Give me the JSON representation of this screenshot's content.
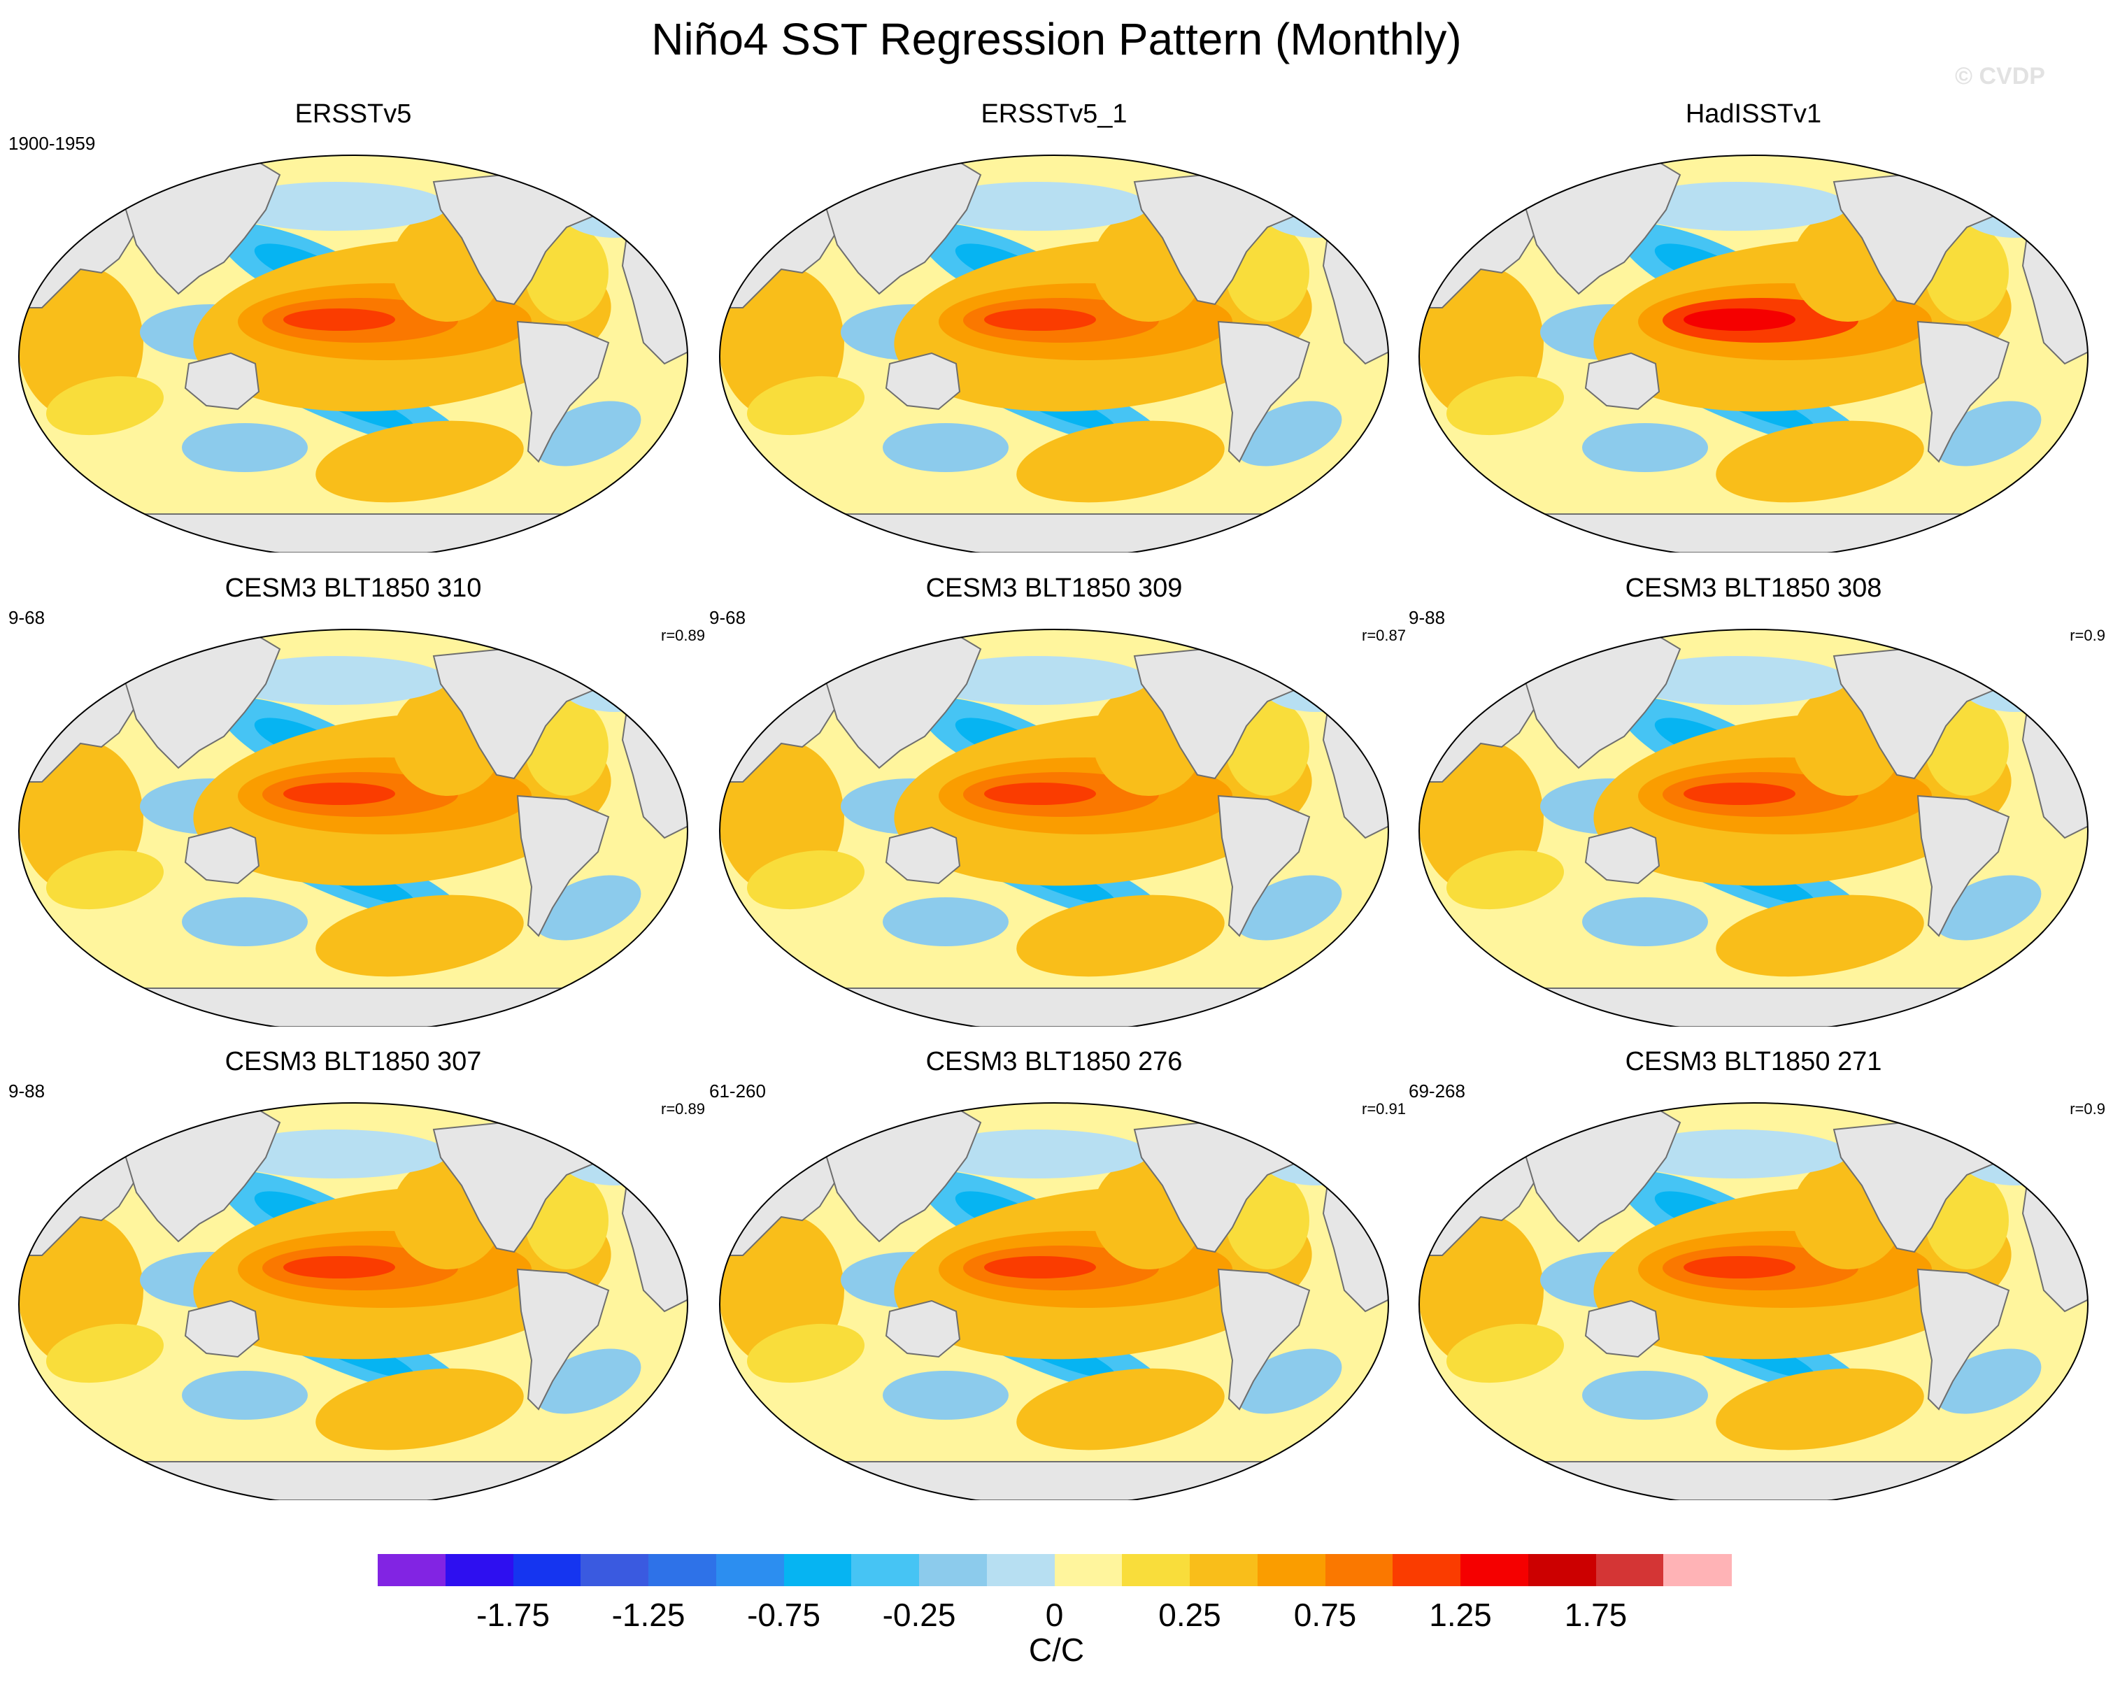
{
  "title": "Niño4 SST Regression Pattern (Monthly)",
  "watermark": "© CVDP",
  "panels": [
    {
      "title": "ERSSTv5",
      "period": "1900-1959",
      "r": "",
      "nino": 1.45,
      "nwpac": -0.9,
      "sh": 0.55
    },
    {
      "title": "ERSSTv5_1",
      "period": "",
      "r": "",
      "nino": 1.35,
      "nwpac": -0.85,
      "sh": 0.6
    },
    {
      "title": "HadISSTv1",
      "period": "",
      "r": "",
      "nino": 1.65,
      "nwpac": -1.0,
      "sh": 0.5
    },
    {
      "title": "CESM3 BLT1850 310",
      "period": "9-68",
      "r": "r=0.89",
      "nino": 1.35,
      "nwpac": -1.0,
      "sh": 0.55
    },
    {
      "title": "CESM3 BLT1850 309",
      "period": "9-68",
      "r": "r=0.87",
      "nino": 1.3,
      "nwpac": -0.9,
      "sh": 0.5
    },
    {
      "title": "CESM3 BLT1850 308",
      "period": "9-88",
      "r": "r=0.9",
      "nino": 1.3,
      "nwpac": -1.0,
      "sh": 0.55
    },
    {
      "title": "CESM3 BLT1850 307",
      "period": "9-88",
      "r": "r=0.89",
      "nino": 1.35,
      "nwpac": -1.0,
      "sh": 0.55
    },
    {
      "title": "CESM3 BLT1850 276",
      "period": "61-260",
      "r": "r=0.91",
      "nino": 1.4,
      "nwpac": -0.95,
      "sh": 0.5
    },
    {
      "title": "CESM3 BLT1850 271",
      "period": "69-268",
      "r": "r=0.9",
      "nino": 1.4,
      "nwpac": -0.95,
      "sh": 0.55
    }
  ],
  "colorbar": {
    "colors": [
      "#8224e3",
      "#2e0ff0",
      "#1535f0",
      "#3a5ae0",
      "#2e72e8",
      "#2c8ef0",
      "#06b4f2",
      "#46c4f4",
      "#8ccbec",
      "#b7dff2",
      "#fff59d",
      "#f9dd3b",
      "#f9be1a",
      "#fa9d00",
      "#fa7800",
      "#fa3c00",
      "#f50000",
      "#cc0000",
      "#d43535",
      "#ffb3b6"
    ],
    "tick_labels": [
      "-1.75",
      "-1.25",
      "-0.75",
      "-0.25",
      "0",
      "0.25",
      "0.75",
      "1.25",
      "1.75"
    ],
    "tick_boundaries": [
      2,
      4,
      6,
      8,
      10,
      12,
      14,
      16,
      18
    ],
    "units": "C/C"
  },
  "land_color": "#e6e6e6"
}
